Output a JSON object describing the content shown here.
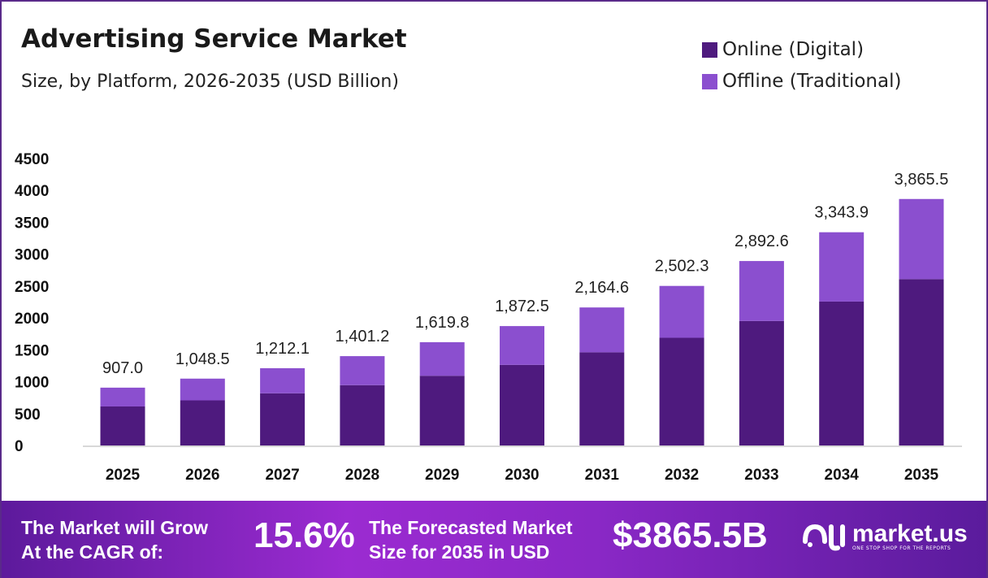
{
  "chart_data": {
    "type": "bar",
    "stacked": true,
    "title": "Advertising Service Market",
    "subtitle": "Size, by Platform, 2026-2035 (USD Billion)",
    "categories": [
      "2025",
      "2026",
      "2027",
      "2028",
      "2029",
      "2030",
      "2031",
      "2032",
      "2033",
      "2034",
      "2035"
    ],
    "series": [
      {
        "name": "Online (Digital)",
        "color": "#4e1a7e",
        "values": [
          612.2,
          707.7,
          818.2,
          945.8,
          1093.4,
          1264.0,
          1461.1,
          1689.0,
          1952.5,
          2257.1,
          2609.2
        ]
      },
      {
        "name": "Offline (Traditional)",
        "color": "#8b4fcf",
        "values": [
          294.8,
          340.8,
          393.9,
          455.4,
          526.4,
          608.5,
          703.5,
          813.3,
          940.1,
          1086.8,
          1256.3
        ]
      }
    ],
    "totals": [
      "907.0",
      "1,048.5",
      "1,212.1",
      "1,401.2",
      "1,619.8",
      "1,872.5",
      "2,164.6",
      "2,502.3",
      "2,892.6",
      "3,343.9",
      "3,865.5"
    ],
    "yticks": [
      "0",
      "500",
      "1000",
      "1500",
      "2000",
      "2500",
      "3000",
      "3500",
      "4000",
      "4500"
    ],
    "ylim": [
      0,
      4500
    ],
    "grid": false,
    "legend": "top-right"
  },
  "footer": {
    "cagr_label_1": "The Market will Grow",
    "cagr_label_2": "At the CAGR of:",
    "cagr_value": "15.6%",
    "forecast_label_1": "The Forecasted Market",
    "forecast_label_2": "Size for 2035 in USD",
    "forecast_value": "$3865.5B",
    "logo_text": "market.us",
    "logo_tagline": "ONE STOP SHOP FOR THE REPORTS"
  }
}
